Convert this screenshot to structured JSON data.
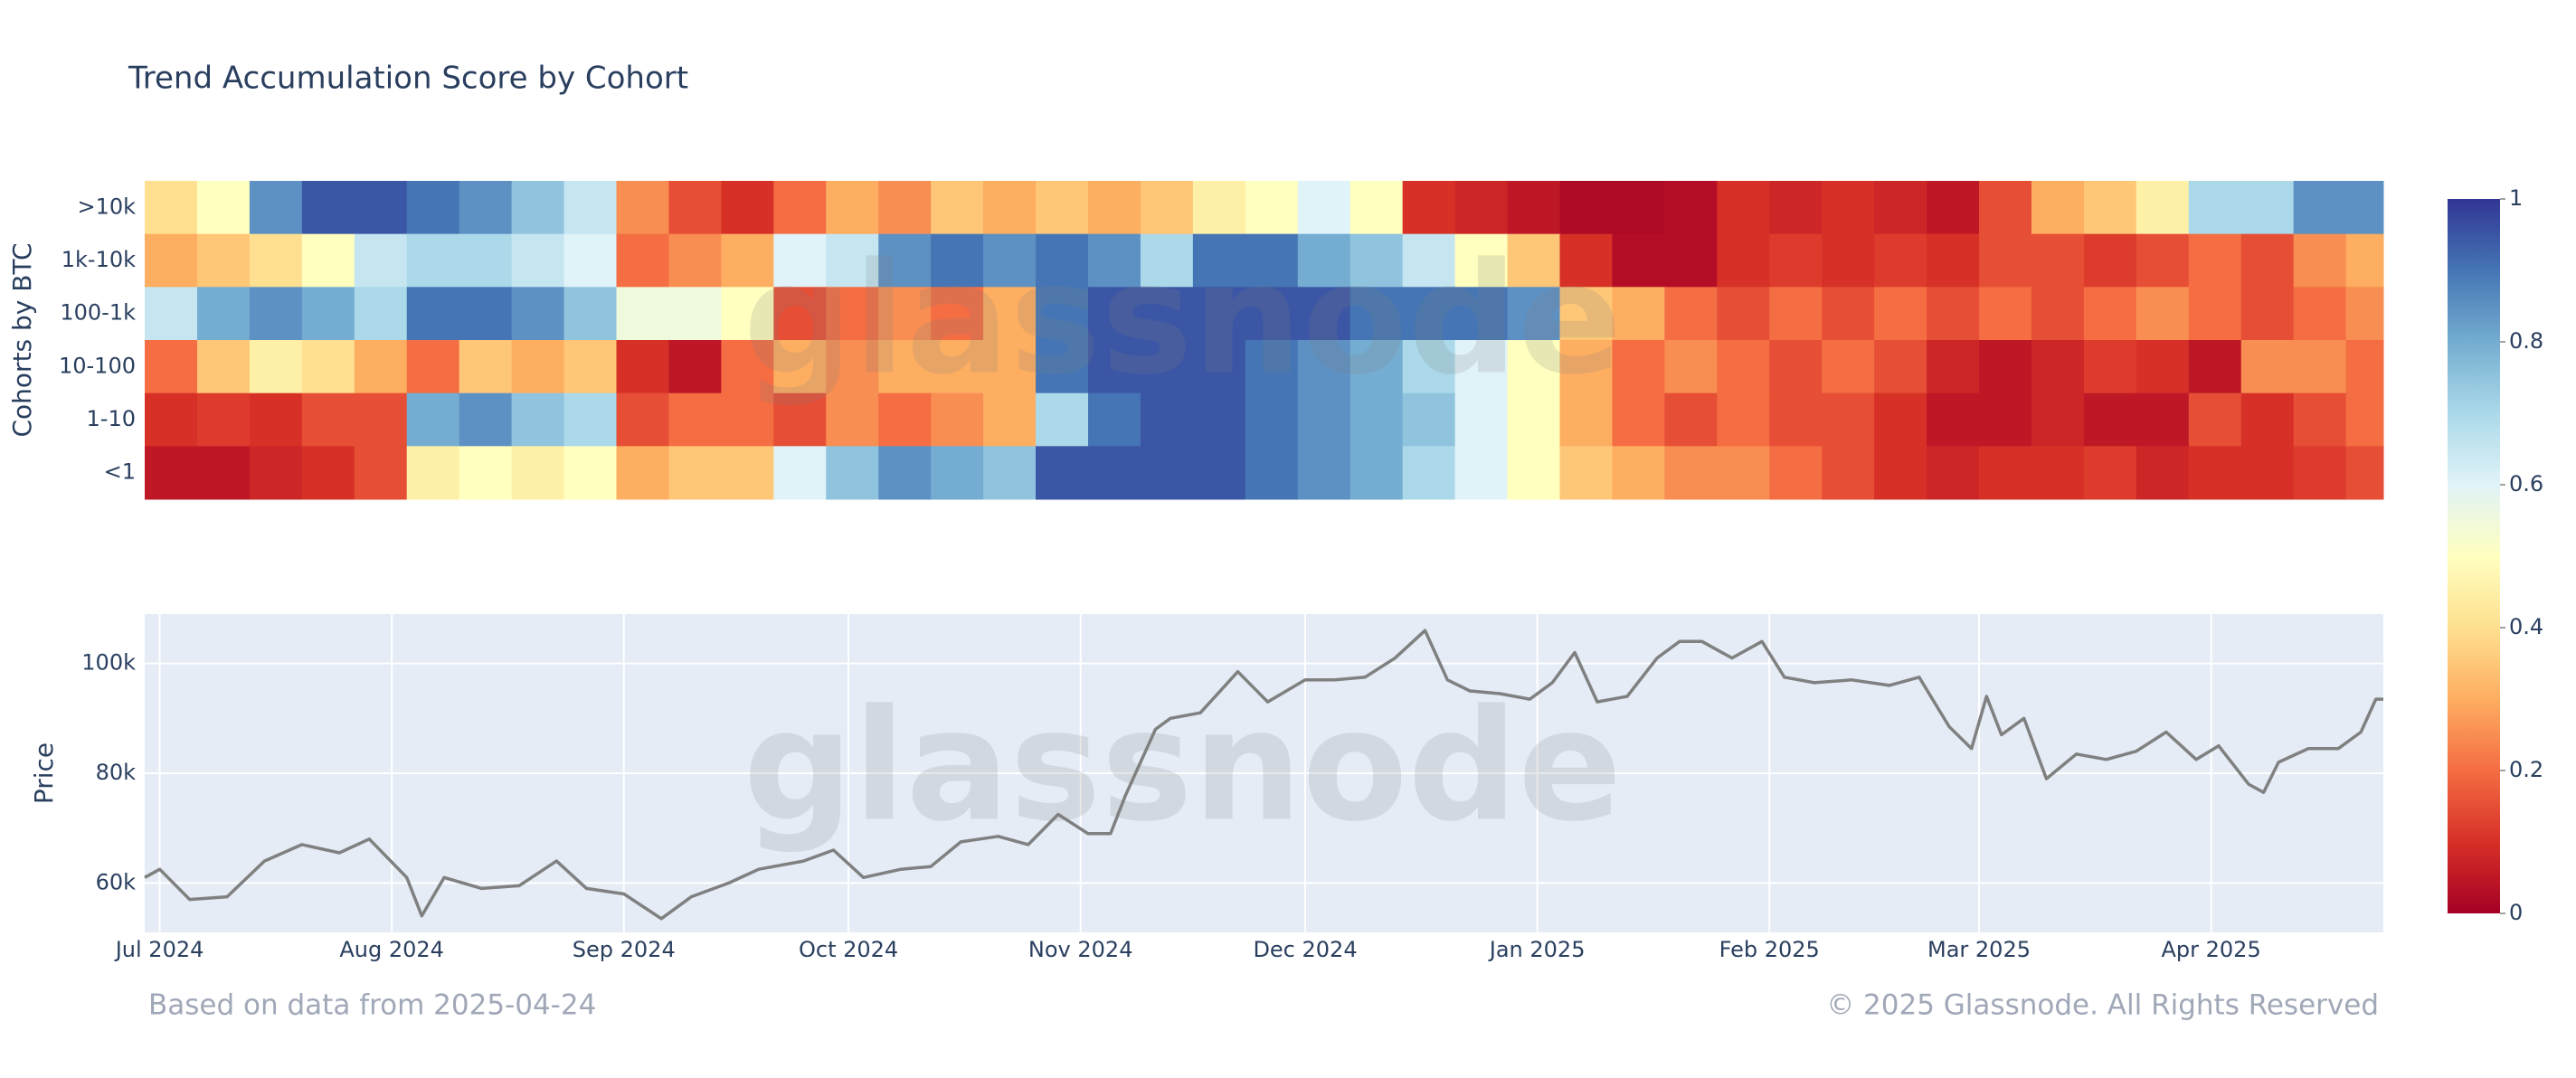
{
  "chart_data": [
    {
      "type": "heatmap",
      "title": "Trend Accumulation Score by Cohort",
      "y_label": "Cohorts by BTC",
      "watermark": "glassnode",
      "categories": [
        ">10k",
        "1k-10k",
        "100-1k",
        "10-100",
        "1-10",
        "<1"
      ],
      "x": [
        "2024-06-29",
        "2024-07-06",
        "2024-07-13",
        "2024-07-20",
        "2024-07-27",
        "2024-08-03",
        "2024-08-10",
        "2024-08-17",
        "2024-08-24",
        "2024-08-31",
        "2024-09-07",
        "2024-09-14",
        "2024-09-21",
        "2024-09-28",
        "2024-10-05",
        "2024-10-12",
        "2024-10-19",
        "2024-10-26",
        "2024-11-02",
        "2024-11-09",
        "2024-11-16",
        "2024-11-23",
        "2024-11-30",
        "2024-12-07",
        "2024-12-14",
        "2024-12-21",
        "2024-12-28",
        "2025-01-04",
        "2025-01-11",
        "2025-01-18",
        "2025-01-25",
        "2025-02-01",
        "2025-02-08",
        "2025-02-15",
        "2025-02-22",
        "2025-03-01",
        "2025-03-08",
        "2025-03-15",
        "2025-03-22",
        "2025-03-29",
        "2025-04-05",
        "2025-04-12",
        "2025-04-19"
      ],
      "z": [
        [
          0.4,
          0.5,
          0.85,
          0.95,
          0.95,
          0.9,
          0.85,
          0.75,
          0.65,
          0.25,
          0.15,
          0.1,
          0.2,
          0.3,
          0.25,
          0.35,
          0.3,
          0.35,
          0.3,
          0.35,
          0.45,
          0.5,
          0.6,
          0.5,
          0.1,
          0.08,
          0.05,
          0.02,
          0.02,
          0.03,
          0.1,
          0.08,
          0.1,
          0.08,
          0.05,
          0.15,
          0.3,
          0.35,
          0.45,
          0.7,
          0.7,
          0.85,
          0.85
        ],
        [
          0.3,
          0.35,
          0.4,
          0.5,
          0.65,
          0.7,
          0.7,
          0.65,
          0.6,
          0.2,
          0.25,
          0.3,
          0.6,
          0.65,
          0.85,
          0.9,
          0.85,
          0.9,
          0.85,
          0.7,
          0.9,
          0.9,
          0.8,
          0.75,
          0.65,
          0.5,
          0.35,
          0.1,
          0.03,
          0.03,
          0.1,
          0.12,
          0.1,
          0.12,
          0.1,
          0.15,
          0.15,
          0.12,
          0.15,
          0.2,
          0.15,
          0.25,
          0.3
        ],
        [
          0.65,
          0.8,
          0.85,
          0.8,
          0.7,
          0.9,
          0.9,
          0.85,
          0.75,
          0.55,
          0.55,
          0.5,
          0.15,
          0.2,
          0.25,
          0.2,
          0.3,
          0.9,
          0.95,
          0.95,
          0.95,
          0.95,
          0.95,
          0.9,
          0.9,
          0.9,
          0.85,
          0.35,
          0.3,
          0.2,
          0.15,
          0.2,
          0.15,
          0.2,
          0.15,
          0.2,
          0.15,
          0.2,
          0.25,
          0.2,
          0.15,
          0.2,
          0.25
        ],
        [
          0.2,
          0.35,
          0.45,
          0.4,
          0.3,
          0.2,
          0.35,
          0.3,
          0.35,
          0.1,
          0.05,
          0.2,
          0.3,
          0.25,
          0.3,
          0.3,
          0.3,
          0.9,
          0.95,
          0.95,
          0.95,
          0.9,
          0.85,
          0.8,
          0.7,
          0.6,
          0.5,
          0.3,
          0.2,
          0.25,
          0.2,
          0.15,
          0.2,
          0.15,
          0.08,
          0.05,
          0.08,
          0.12,
          0.1,
          0.05,
          0.25,
          0.25,
          0.2
        ],
        [
          0.1,
          0.12,
          0.1,
          0.15,
          0.15,
          0.8,
          0.85,
          0.75,
          0.7,
          0.15,
          0.2,
          0.2,
          0.15,
          0.25,
          0.2,
          0.25,
          0.3,
          0.7,
          0.9,
          0.95,
          0.95,
          0.9,
          0.85,
          0.8,
          0.75,
          0.6,
          0.5,
          0.3,
          0.2,
          0.15,
          0.2,
          0.15,
          0.15,
          0.1,
          0.05,
          0.05,
          0.08,
          0.05,
          0.05,
          0.15,
          0.1,
          0.15,
          0.2
        ],
        [
          0.05,
          0.05,
          0.08,
          0.1,
          0.15,
          0.45,
          0.5,
          0.45,
          0.5,
          0.3,
          0.35,
          0.35,
          0.6,
          0.75,
          0.85,
          0.8,
          0.75,
          0.95,
          0.95,
          0.95,
          0.95,
          0.9,
          0.85,
          0.8,
          0.7,
          0.6,
          0.5,
          0.35,
          0.3,
          0.25,
          0.25,
          0.2,
          0.15,
          0.1,
          0.08,
          0.1,
          0.1,
          0.12,
          0.08,
          0.1,
          0.1,
          0.12,
          0.15
        ]
      ],
      "xlim": [
        "2024-06-29",
        "2025-04-24"
      ],
      "zlim": [
        0,
        1
      ],
      "colorbar_ticks": [
        0,
        0.2,
        0.4,
        0.6,
        0.8,
        1
      ],
      "colorscale": [
        [
          0,
          "#a50026"
        ],
        [
          0.1,
          "#d73027"
        ],
        [
          0.2,
          "#f46d43"
        ],
        [
          0.3,
          "#fdae61"
        ],
        [
          0.4,
          "#fee090"
        ],
        [
          0.5,
          "#ffffbf"
        ],
        [
          0.6,
          "#e0f3f8"
        ],
        [
          0.7,
          "#abd9e9"
        ],
        [
          0.8,
          "#74add1"
        ],
        [
          0.9,
          "#4575b4"
        ],
        [
          1,
          "#313695"
        ]
      ]
    },
    {
      "type": "line",
      "y_label": "Price",
      "watermark": "glassnode",
      "color": "#808080",
      "grid": true,
      "background": "#e5ecf6",
      "x": [
        "2024-06-29",
        "2024-07-01",
        "2024-07-05",
        "2024-07-10",
        "2024-07-15",
        "2024-07-20",
        "2024-07-25",
        "2024-07-29",
        "2024-08-03",
        "2024-08-05",
        "2024-08-08",
        "2024-08-13",
        "2024-08-18",
        "2024-08-23",
        "2024-08-27",
        "2024-09-01",
        "2024-09-06",
        "2024-09-10",
        "2024-09-15",
        "2024-09-19",
        "2024-09-25",
        "2024-09-29",
        "2024-10-03",
        "2024-10-08",
        "2024-10-12",
        "2024-10-16",
        "2024-10-21",
        "2024-10-25",
        "2024-10-29",
        "2024-11-02",
        "2024-11-05",
        "2024-11-07",
        "2024-11-11",
        "2024-11-13",
        "2024-11-17",
        "2024-11-22",
        "2024-11-26",
        "2024-12-01",
        "2024-12-05",
        "2024-12-09",
        "2024-12-13",
        "2024-12-17",
        "2024-12-20",
        "2024-12-23",
        "2024-12-27",
        "2024-12-31",
        "2025-01-03",
        "2025-01-06",
        "2025-01-09",
        "2025-01-13",
        "2025-01-17",
        "2025-01-20",
        "2025-01-23",
        "2025-01-27",
        "2025-01-31",
        "2025-02-03",
        "2025-02-07",
        "2025-02-12",
        "2025-02-17",
        "2025-02-21",
        "2025-02-25",
        "2025-02-28",
        "2025-03-02",
        "2025-03-04",
        "2025-03-07",
        "2025-03-10",
        "2025-03-14",
        "2025-03-18",
        "2025-03-22",
        "2025-03-26",
        "2025-03-30",
        "2025-04-02",
        "2025-04-06",
        "2025-04-08",
        "2025-04-10",
        "2025-04-14",
        "2025-04-18",
        "2025-04-21",
        "2025-04-23",
        "2025-04-24"
      ],
      "values": [
        61000,
        62500,
        57000,
        57500,
        64000,
        67000,
        65500,
        68000,
        61000,
        54000,
        61000,
        59000,
        59500,
        64000,
        59000,
        58000,
        53500,
        57500,
        60000,
        62500,
        64000,
        66000,
        61000,
        62500,
        63000,
        67500,
        68500,
        67000,
        72500,
        69000,
        69000,
        76000,
        88000,
        90000,
        91000,
        98500,
        93000,
        97000,
        97000,
        97500,
        101000,
        106000,
        97000,
        95000,
        94500,
        93500,
        96500,
        102000,
        93000,
        94000,
        101000,
        104000,
        104000,
        101000,
        104000,
        97500,
        96500,
        97000,
        96000,
        97500,
        88500,
        84500,
        94000,
        87000,
        90000,
        79000,
        83500,
        82500,
        84000,
        87500,
        82500,
        85000,
        78000,
        76500,
        82000,
        84500,
        84500,
        87500,
        93500,
        93500
      ],
      "xlim": [
        "2024-06-29",
        "2025-04-24"
      ],
      "ylim": [
        51000,
        109000
      ],
      "yticks": [
        {
          "value": 60000,
          "label": "60k"
        },
        {
          "value": 80000,
          "label": "80k"
        },
        {
          "value": 100000,
          "label": "100k"
        }
      ],
      "xticks": [
        {
          "value": "2024-07-01",
          "label": "Jul 2024"
        },
        {
          "value": "2024-08-01",
          "label": "Aug 2024"
        },
        {
          "value": "2024-09-01",
          "label": "Sep 2024"
        },
        {
          "value": "2024-10-01",
          "label": "Oct 2024"
        },
        {
          "value": "2024-11-01",
          "label": "Nov 2024"
        },
        {
          "value": "2024-12-01",
          "label": "Dec 2024"
        },
        {
          "value": "2025-01-01",
          "label": "Jan 2025"
        },
        {
          "value": "2025-02-01",
          "label": "Feb 2025"
        },
        {
          "value": "2025-03-01",
          "label": "Mar 2025"
        },
        {
          "value": "2025-04-01",
          "label": "Apr 2025"
        }
      ]
    }
  ],
  "footer": {
    "source_note": "Based on data from 2025-04-24",
    "copyright": "© 2025 Glassnode. All Rights Reserved"
  }
}
